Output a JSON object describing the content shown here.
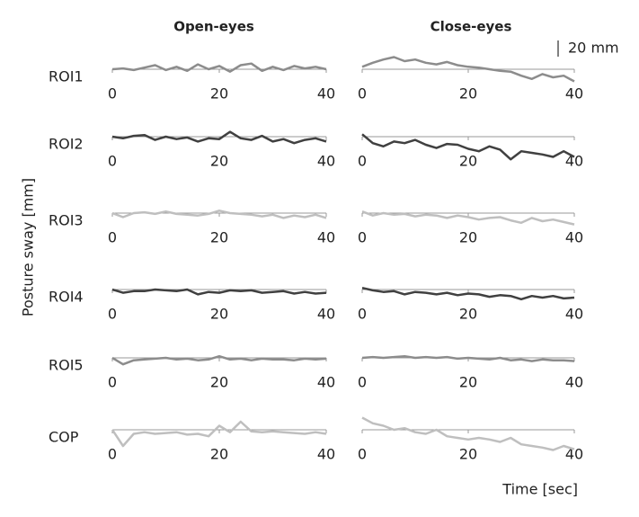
{
  "chart_data": {
    "type": "line",
    "columns": [
      "Open-eyes",
      "Close-eyes"
    ],
    "xlabel": "Time [sec]",
    "ylabel": "Posture sway [mm]",
    "scale_bar": {
      "value": 20,
      "label": "20 mm"
    },
    "xlim": [
      0,
      40
    ],
    "xticks": [
      0,
      20,
      40
    ],
    "ylim": [
      -30,
      15
    ],
    "x": [
      0,
      2,
      4,
      6,
      8,
      10,
      12,
      14,
      16,
      18,
      20,
      22,
      24,
      26,
      28,
      30,
      32,
      34,
      36,
      38,
      40
    ],
    "rows": [
      {
        "name": "ROI1",
        "color": "#8c8c8c",
        "series": [
          {
            "values": [
              0,
              1,
              -1,
              2,
              5,
              -1,
              3,
              -2,
              6,
              0,
              4,
              -3,
              5,
              7,
              -2,
              3,
              -1,
              4,
              1,
              3,
              0
            ]
          },
          {
            "values": [
              3,
              8,
              12,
              15,
              10,
              12,
              8,
              6,
              9,
              5,
              3,
              2,
              0,
              -2,
              -3,
              -8,
              -12,
              -6,
              -10,
              -8,
              -15
            ]
          }
        ]
      },
      {
        "name": "ROI2",
        "color": "#404040",
        "series": [
          {
            "values": [
              0,
              -2,
              1,
              2,
              -4,
              0,
              -3,
              -1,
              -6,
              -2,
              -3,
              6,
              -2,
              -4,
              1,
              -6,
              -3,
              -8,
              -4,
              -2,
              -6
            ]
          },
          {
            "values": [
              3,
              -8,
              -12,
              -6,
              -8,
              -4,
              -10,
              -14,
              -9,
              -10,
              -15,
              -18,
              -12,
              -16,
              -28,
              -18,
              -20,
              -22,
              -25,
              -18,
              -25
            ]
          }
        ]
      },
      {
        "name": "ROI3",
        "color": "#bfbfbf",
        "series": [
          {
            "values": [
              0,
              -5,
              0,
              1,
              -1,
              2,
              -1,
              -2,
              -3,
              -1,
              3,
              0,
              -1,
              -2,
              -4,
              -2,
              -6,
              -3,
              -5,
              -2,
              -6
            ]
          },
          {
            "values": [
              2,
              -3,
              0,
              -2,
              -1,
              -4,
              -2,
              -3,
              -6,
              -3,
              -5,
              -8,
              -6,
              -5,
              -9,
              -12,
              -6,
              -10,
              -8,
              -11,
              -14
            ]
          }
        ]
      },
      {
        "name": "ROI4",
        "color": "#404040",
        "series": [
          {
            "values": [
              0,
              -4,
              -2,
              -2,
              0,
              -1,
              -2,
              0,
              -6,
              -3,
              -4,
              -1,
              -2,
              -1,
              -4,
              -3,
              -2,
              -5,
              -3,
              -5,
              -4
            ]
          },
          {
            "values": [
              2,
              -1,
              -3,
              -2,
              -6,
              -3,
              -4,
              -6,
              -4,
              -7,
              -5,
              -6,
              -9,
              -7,
              -8,
              -12,
              -8,
              -10,
              -8,
              -11,
              -10
            ]
          }
        ]
      },
      {
        "name": "ROI5",
        "color": "#8c8c8c",
        "series": [
          {
            "values": [
              0,
              -8,
              -3,
              -2,
              -1,
              0,
              -2,
              -1,
              -3,
              -2,
              2,
              -2,
              -1,
              -3,
              -1,
              -2,
              -2,
              -3,
              -1,
              -2,
              -1
            ]
          },
          {
            "values": [
              0,
              1,
              0,
              1,
              2,
              0,
              1,
              0,
              1,
              -1,
              0,
              -1,
              -2,
              0,
              -3,
              -2,
              -4,
              -2,
              -3,
              -3,
              -4
            ]
          }
        ]
      },
      {
        "name": "COP",
        "color": "#bfbfbf",
        "series": [
          {
            "values": [
              0,
              -20,
              -5,
              -3,
              -5,
              -4,
              -3,
              -6,
              -5,
              -8,
              5,
              -3,
              10,
              -2,
              -3,
              -2,
              -3,
              -4,
              -5,
              -3,
              -5
            ]
          },
          {
            "values": [
              15,
              8,
              5,
              0,
              2,
              -3,
              -5,
              0,
              -8,
              -10,
              -12,
              -10,
              -12,
              -15,
              -10,
              -18,
              -20,
              -22,
              -25,
              -20,
              -24
            ]
          }
        ]
      }
    ]
  }
}
